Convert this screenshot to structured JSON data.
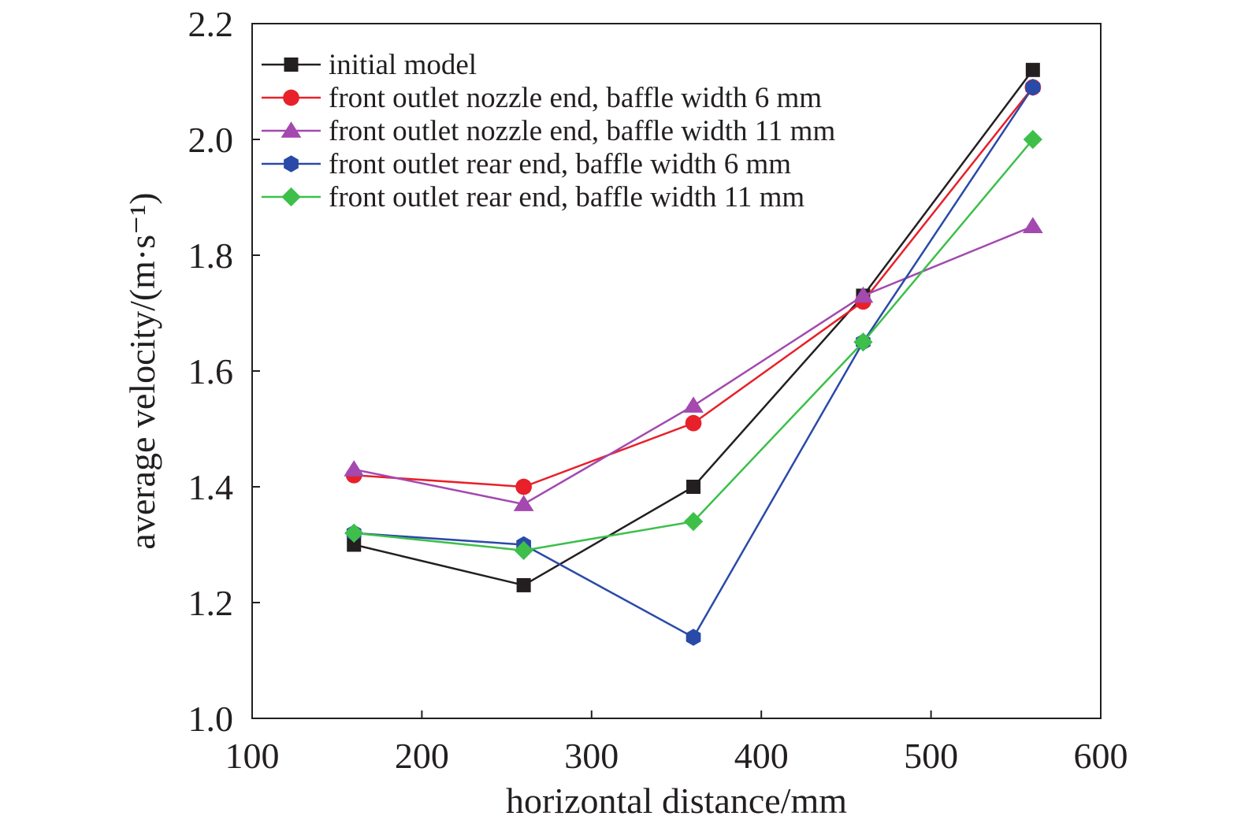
{
  "chart_data": {
    "type": "line",
    "title": "",
    "xlabel": "horizontal distance/mm",
    "ylabel": "average velocity/(m·s⁻¹)",
    "xlim": [
      100,
      600
    ],
    "ylim": [
      1.0,
      2.2
    ],
    "x_ticks": [
      "100",
      "200",
      "300",
      "400",
      "500",
      "600"
    ],
    "y_ticks": [
      "1.0",
      "1.2",
      "1.4",
      "1.6",
      "1.8",
      "2.0",
      "2.2"
    ],
    "x": [
      160,
      260,
      360,
      460,
      560
    ],
    "grid": false,
    "legend_position": "top-left",
    "series": [
      {
        "name": "initial model",
        "color": "#231f20",
        "marker": "square",
        "values": [
          1.3,
          1.23,
          1.4,
          1.73,
          2.12
        ]
      },
      {
        "name": "front outlet nozzle end, baffle width 6 mm",
        "color": "#e8202a",
        "marker": "circle",
        "values": [
          1.42,
          1.4,
          1.51,
          1.72,
          2.09
        ]
      },
      {
        "name": "front outlet nozzle end, baffle width 11 mm",
        "color": "#a349b0",
        "marker": "triangle",
        "values": [
          1.43,
          1.37,
          1.54,
          1.73,
          1.85
        ]
      },
      {
        "name": "front outlet rear end, baffle width 6 mm",
        "color": "#2a4aa8",
        "marker": "hexagon",
        "values": [
          1.32,
          1.3,
          1.14,
          1.65,
          2.09
        ]
      },
      {
        "name": "front outlet rear end, baffle width 11 mm",
        "color": "#3dbf4a",
        "marker": "diamond",
        "values": [
          1.32,
          1.29,
          1.34,
          1.65,
          2.0
        ]
      }
    ]
  }
}
